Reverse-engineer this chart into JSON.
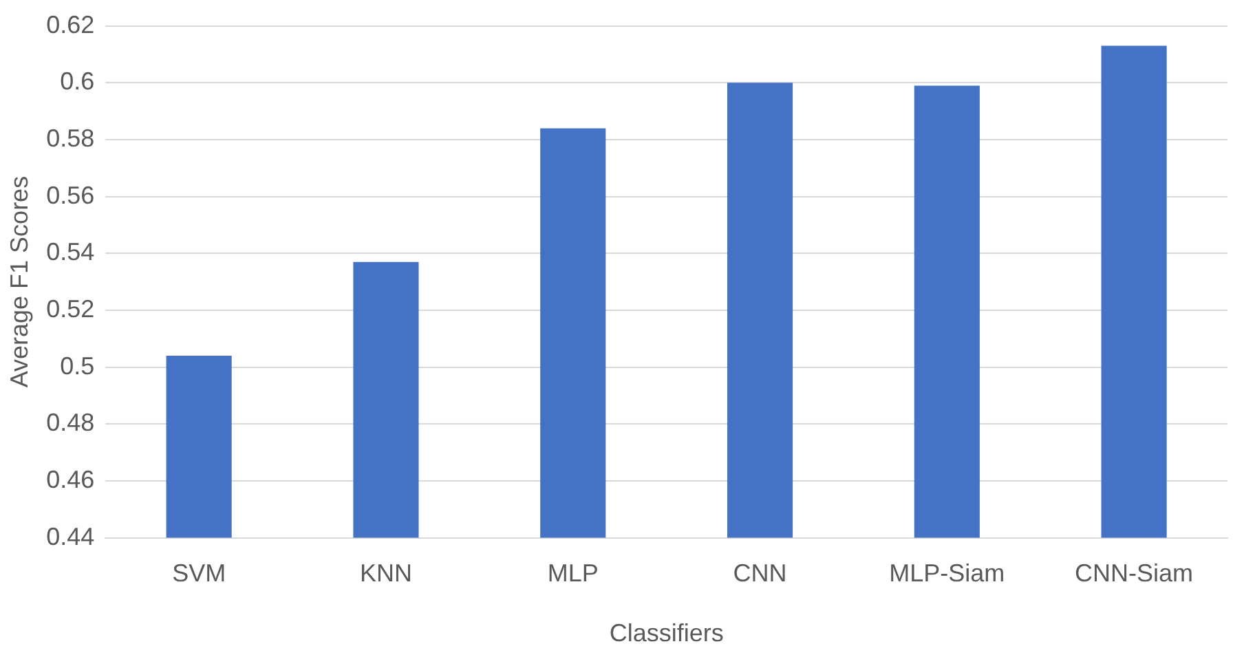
{
  "chart_data": {
    "type": "bar",
    "xlabel": "Classifiers",
    "ylabel": "Average F1 Scores",
    "categories": [
      "SVM",
      "KNN",
      "MLP",
      "CNN",
      "MLP-Siam",
      "CNN-Siam"
    ],
    "values": [
      0.504,
      0.537,
      0.584,
      0.6,
      0.599,
      0.613
    ],
    "color": "#4472c4",
    "ylim": [
      0.44,
      0.62
    ],
    "yticks": [
      0.44,
      0.46,
      0.48,
      0.5,
      0.52,
      0.54,
      0.56,
      0.58,
      0.6,
      0.62
    ],
    "grid": "y",
    "legend": false
  }
}
